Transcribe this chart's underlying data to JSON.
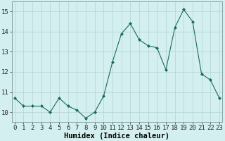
{
  "x": [
    0,
    1,
    2,
    3,
    4,
    5,
    6,
    7,
    8,
    9,
    10,
    11,
    12,
    13,
    14,
    15,
    16,
    17,
    18,
    19,
    20,
    21,
    22,
    23
  ],
  "y": [
    10.7,
    10.3,
    10.3,
    10.3,
    10.0,
    10.7,
    10.3,
    10.1,
    9.7,
    10.0,
    10.8,
    12.5,
    13.9,
    14.4,
    13.6,
    13.3,
    13.2,
    12.1,
    14.2,
    15.1,
    14.5,
    11.9,
    11.6,
    10.7
  ],
  "xlabel": "Humidex (Indice chaleur)",
  "bg_color": "#d4efef",
  "grid_color": "#b8d8d8",
  "line_color": "#1a6b5a",
  "marker_color": "#1a6b5a",
  "ylim": [
    9.5,
    15.5
  ],
  "yticks": [
    10,
    11,
    12,
    13,
    14,
    15
  ],
  "xticks": [
    0,
    1,
    2,
    3,
    4,
    5,
    6,
    7,
    8,
    9,
    10,
    11,
    12,
    13,
    14,
    15,
    16,
    17,
    18,
    19,
    20,
    21,
    22,
    23
  ],
  "xlabel_fontsize": 7.5,
  "tick_fontsize": 6.5,
  "xlim_left": -0.3,
  "xlim_right": 23.3
}
